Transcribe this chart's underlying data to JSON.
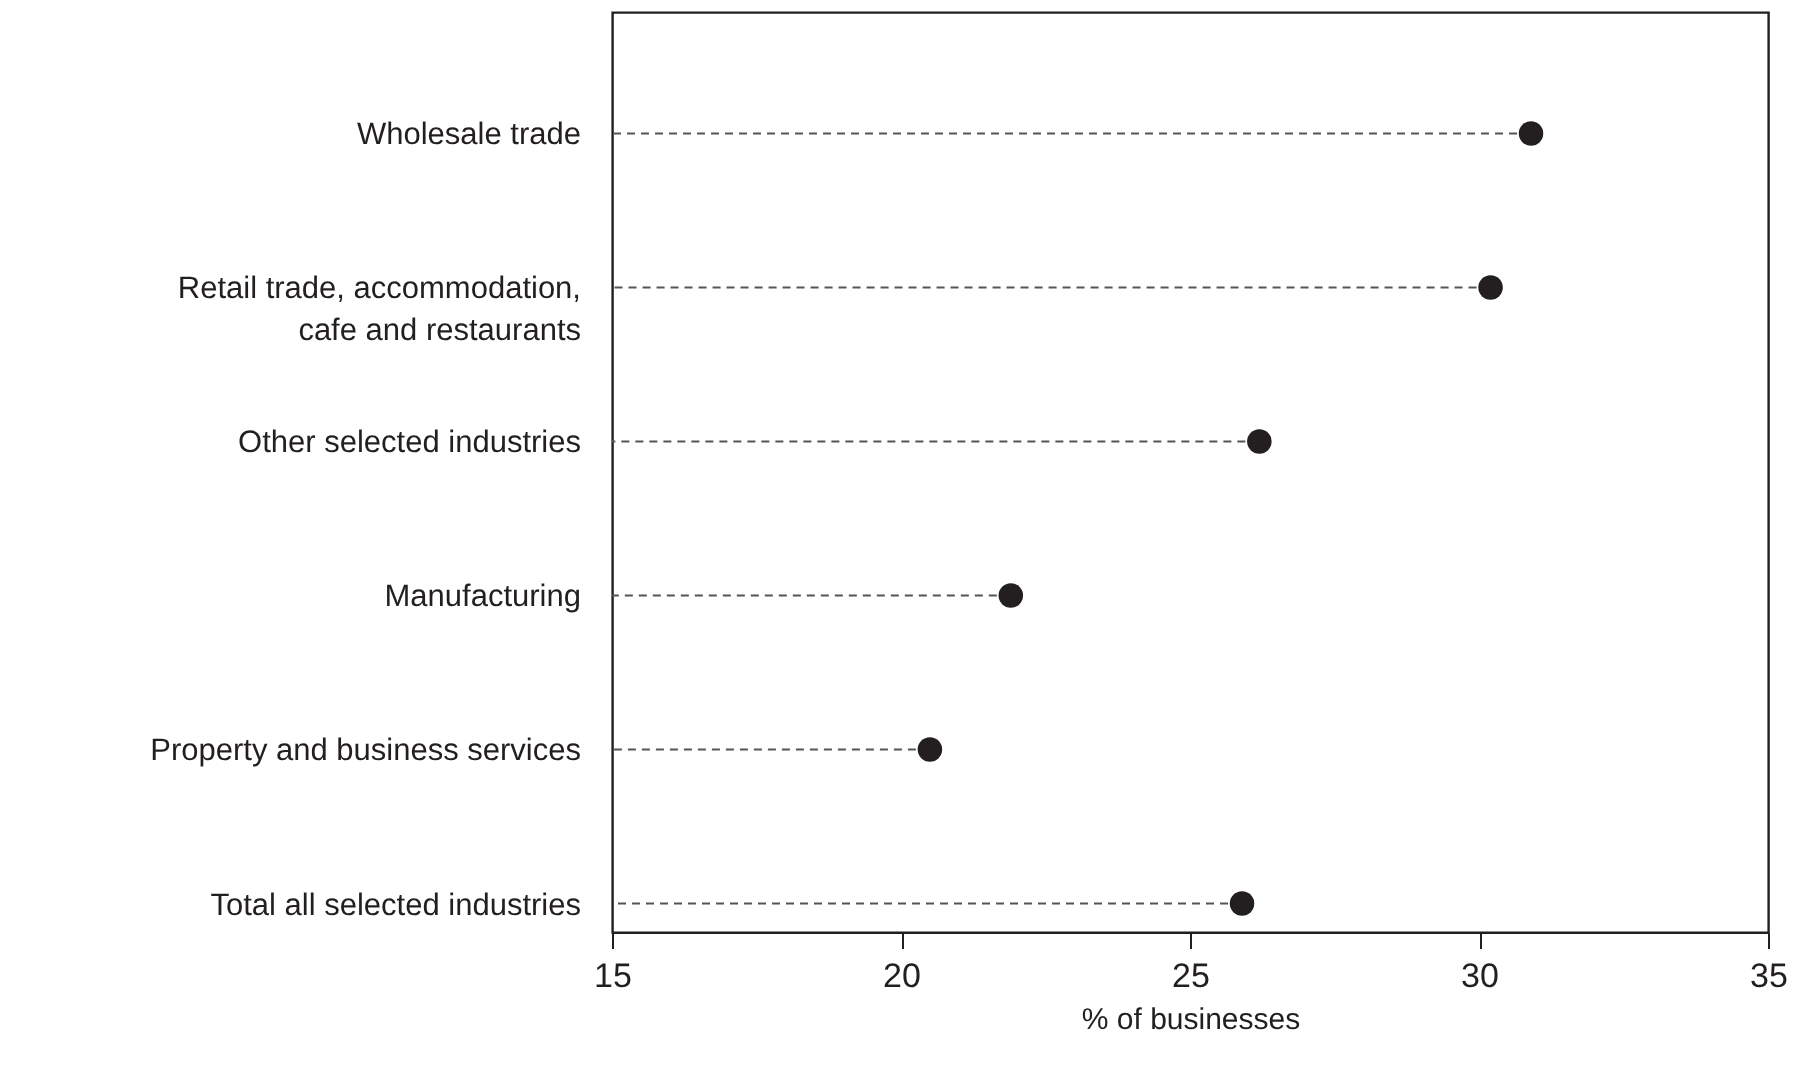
{
  "chart_data": {
    "type": "lollipop",
    "orientation": "horizontal",
    "xlabel": "% of businesses",
    "categories": [
      "Wholesale trade",
      "Retail trade, accommodation, cafe and restaurants",
      "Other selected industries",
      "Manufacturing",
      "Property and business services",
      "Total all selected industries"
    ],
    "series": [
      {
        "color": "#231f20",
        "values": [
          30.9,
          30.2,
          26.2,
          21.9,
          20.5,
          25.9
        ]
      }
    ],
    "xlim": [
      15,
      35
    ],
    "xticks": [
      15,
      20,
      25,
      30,
      35
    ],
    "marker": "circle",
    "line_style": "dashed"
  }
}
